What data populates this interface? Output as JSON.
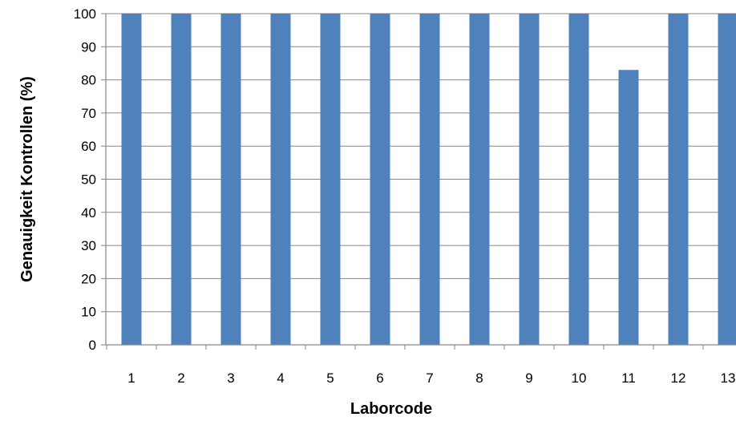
{
  "chart_data": {
    "type": "bar",
    "title": "",
    "xlabel": "Laborcode",
    "ylabel": "Genauigkeit Kontrollen (%)",
    "categories": [
      "1",
      "2",
      "3",
      "4",
      "5",
      "6",
      "7",
      "8",
      "9",
      "10",
      "11",
      "12",
      "13"
    ],
    "values": [
      100,
      100,
      100,
      100,
      100,
      100,
      100,
      100,
      100,
      100,
      83,
      100,
      100
    ],
    "ylim": [
      0,
      100
    ],
    "yticks": [
      "0",
      "10",
      "20",
      "30",
      "40",
      "50",
      "60",
      "70",
      "80",
      "90",
      "100"
    ],
    "grid": true,
    "legend": "none",
    "bar_color": "#4F81BD"
  }
}
